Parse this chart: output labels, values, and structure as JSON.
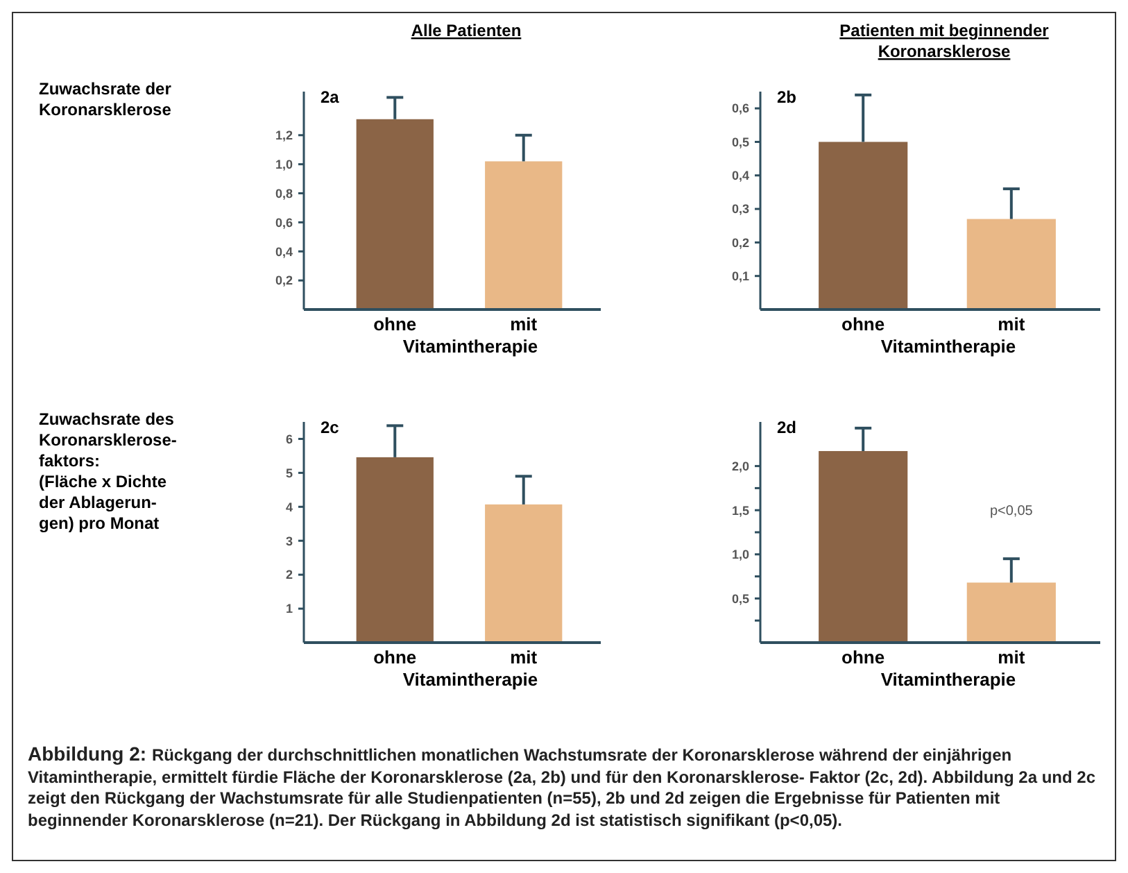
{
  "chart_data": [
    {
      "type": "bar",
      "title": "2a",
      "subtitle": "Alle Patienten",
      "ylabel": "Zuwachsrate der\nKoronarsklerose",
      "xlabel": "Vitamintherapie",
      "categories": [
        "ohne",
        "mit"
      ],
      "values": [
        1.31,
        1.02
      ],
      "colors": [
        "#8b6446",
        "#e9b887"
      ],
      "errors": [
        [
          1.31,
          1.46
        ],
        [
          1.02,
          1.2
        ]
      ],
      "ylim": [
        0,
        1.5
      ],
      "yticks": [
        {
          "value": 0.2,
          "label": "0,2"
        },
        {
          "value": 0.4,
          "label": "0,4"
        },
        {
          "value": 0.6,
          "label": "0,6"
        },
        {
          "value": 0.8,
          "label": "0,8"
        },
        {
          "value": 1.0,
          "label": "1,0"
        },
        {
          "value": 1.2,
          "label": "1,2"
        }
      ]
    },
    {
      "type": "bar",
      "title": "2b",
      "subtitle": "Patienten mit beginnender\nKoronarsklerose",
      "xlabel": "Vitamintherapie",
      "categories": [
        "ohne",
        "mit"
      ],
      "values": [
        0.5,
        0.27
      ],
      "colors": [
        "#8b6446",
        "#e9b887"
      ],
      "errors": [
        [
          0.5,
          0.64
        ],
        [
          0.27,
          0.36
        ]
      ],
      "ylim": [
        0,
        0.65
      ],
      "yticks": [
        {
          "value": 0.1,
          "label": "0,1"
        },
        {
          "value": 0.2,
          "label": "0,2"
        },
        {
          "value": 0.3,
          "label": "0,3"
        },
        {
          "value": 0.4,
          "label": "0,4"
        },
        {
          "value": 0.5,
          "label": "0,5"
        },
        {
          "value": 0.6,
          "label": "0,6"
        }
      ]
    },
    {
      "type": "bar",
      "title": "2c",
      "ylabel": "Zuwachsrate des\nKoronarsklerose-\nfaktors:\n(Fläche x Dichte\nder Ablagerun-\ngen) pro Monat",
      "xlabel": "Vitamintherapie",
      "categories": [
        "ohne",
        "mit"
      ],
      "values": [
        5.46,
        4.07
      ],
      "colors": [
        "#8b6446",
        "#e9b887"
      ],
      "errors": [
        [
          5.46,
          6.39
        ],
        [
          4.07,
          4.9
        ]
      ],
      "ylim": [
        0,
        6.5
      ],
      "yticks": [
        1,
        2,
        3,
        4,
        5,
        6
      ]
    },
    {
      "type": "bar",
      "title": "2d",
      "xlabel": "Vitamintherapie",
      "categories": [
        "ohne",
        "mit"
      ],
      "values": [
        2.17,
        0.68
      ],
      "colors": [
        "#8b6446",
        "#e9b887"
      ],
      "errors": [
        [
          2.17,
          2.43
        ],
        [
          0.68,
          0.95
        ]
      ],
      "ylim": [
        0,
        2.5
      ],
      "yticks": [
        {
          "value": 0.25,
          "label": null
        },
        {
          "value": 0.5,
          "label": "0,5"
        },
        {
          "value": 0.75,
          "label": null
        },
        {
          "value": 1.0,
          "label": "1,0"
        },
        {
          "value": 1.25,
          "label": null
        },
        {
          "value": 1.5,
          "label": "1,5"
        },
        {
          "value": 1.75,
          "label": null
        },
        {
          "value": 2.0,
          "label": "2,0"
        }
      ],
      "annotations": [
        "p<0,05"
      ]
    },
    {
      "type": "other",
      "title": "Abbildung 2:",
      "annotations": [
        "Rückgang der durchschnittlichen monatlichen Wachstumsrate der Koronarsklerose während der einjährigen Vitamintherapie, ermittelt fürdie Fläche der Koronarsklerose (2a, 2b) und für den Koronarsklerose- Faktor (2c, 2d). Abbildung 2a und 2c zeigt den Rückgang der Wachstumsrate für alle Studienpatienten (n=55), 2b und 2d zeigen die Ergebnisse für Patienten mit beginnender Koronarsklerose (n=21). Der Rückgang in Abbildung 2d ist statistisch signifikant (p<0,05)."
      ]
    }
  ]
}
